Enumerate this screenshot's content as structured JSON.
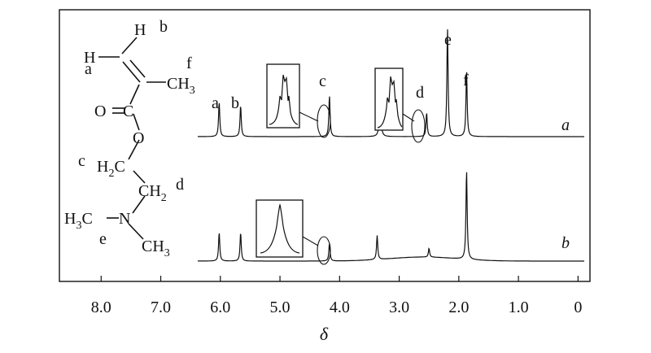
{
  "chart_data": {
    "type": "line",
    "title": "",
    "xlabel": "δ",
    "ylabel": "",
    "xlim": [
      8.7,
      -0.2
    ],
    "x_reversed": true,
    "xticks": [
      "8.0",
      "7.0",
      "6.0",
      "5.0",
      "4.0",
      "3.0",
      "2.0",
      "1.0",
      "0"
    ],
    "grid": false,
    "series": [
      {
        "name": "a",
        "peaks": [
          {
            "label": "a",
            "ppm": 6.02,
            "height": 0.32
          },
          {
            "label": "b",
            "ppm": 5.66,
            "height": 0.29
          },
          {
            "label": "c",
            "ppm": 4.17,
            "height": 0.38,
            "inset": true
          },
          {
            "label": "",
            "ppm": 3.32,
            "height": 0.55
          },
          {
            "label": "d",
            "ppm": 2.54,
            "height": 0.22,
            "inset": true
          },
          {
            "label": "e",
            "ppm": 2.19,
            "height": 1.0
          },
          {
            "label": "f",
            "ppm": 1.87,
            "height": 0.61
          }
        ]
      },
      {
        "name": "b",
        "peaks": [
          {
            "label": "",
            "ppm": 6.02,
            "height": 0.32
          },
          {
            "label": "",
            "ppm": 5.66,
            "height": 0.32
          },
          {
            "label": "",
            "ppm": 4.17,
            "height": 0.2,
            "inset": true
          },
          {
            "label": "",
            "ppm": 3.37,
            "height": 0.27
          },
          {
            "label": "",
            "ppm": 2.5,
            "height": 0.1
          },
          {
            "label": "",
            "ppm": 1.87,
            "height": 1.0
          }
        ]
      }
    ]
  },
  "molecule": {
    "H_top": "H",
    "H_left": "H",
    "CH3": "CH",
    "CH3_sub": "3",
    "O_dbl": "O",
    "C": "C",
    "O_ester": "O",
    "H2C": "H",
    "H2C_sub": "2",
    "H2C_c": "C",
    "CH2": "CH",
    "CH2_sub": "2",
    "H3C": "H",
    "H3C_sub": "3",
    "H3C_c": "C",
    "N": "N",
    "CH3b": "CH",
    "CH3b_sub": "3",
    "lbl_a": "a",
    "lbl_b": "b",
    "lbl_c": "c",
    "lbl_d": "d",
    "lbl_e": "e",
    "lbl_f": "f"
  },
  "colors": {
    "line": "#111111",
    "axis": "#111111"
  }
}
